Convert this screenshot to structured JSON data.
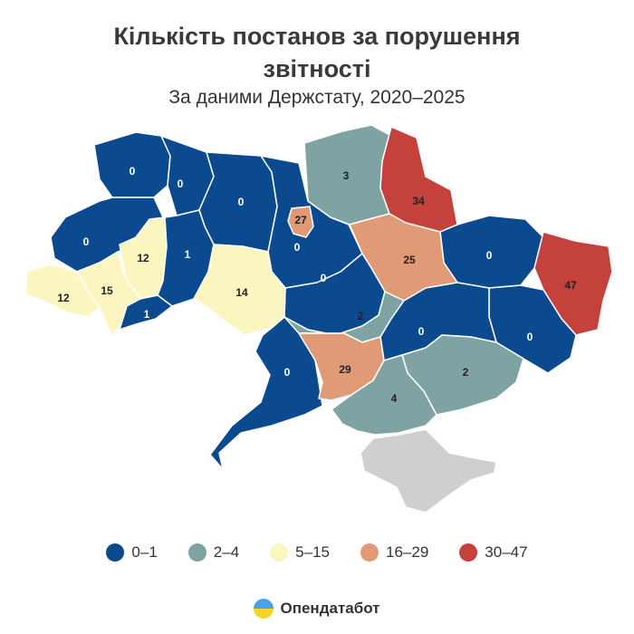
{
  "title_line1": "Кількість постанов за порушення",
  "title_line2": "звітності",
  "subtitle": "За даними Держстату, 2020–2025",
  "colors": {
    "c0": "#0b4a8f",
    "c1": "#7fa3a3",
    "c2": "#fbf6bf",
    "c3": "#e09b76",
    "c4": "#c5413c",
    "crimea": "#cfcfcf",
    "border": "#ffffff"
  },
  "regions": [
    {
      "id": "volyn",
      "value": "0",
      "cls": "c0"
    },
    {
      "id": "rivne",
      "value": "0",
      "cls": "c0"
    },
    {
      "id": "zhytomyr",
      "value": "0",
      "cls": "c0"
    },
    {
      "id": "kyiv-oblast",
      "value": "0",
      "cls": "c0"
    },
    {
      "id": "kyiv-city",
      "value": "27",
      "cls": "c3"
    },
    {
      "id": "chernihiv",
      "value": "3",
      "cls": "c1"
    },
    {
      "id": "sumy",
      "value": "34",
      "cls": "c4"
    },
    {
      "id": "kharkiv",
      "value": "0",
      "cls": "c0"
    },
    {
      "id": "luhansk",
      "value": "47",
      "cls": "c4"
    },
    {
      "id": "donetsk",
      "value": "0",
      "cls": "c0"
    },
    {
      "id": "poltava",
      "value": "25",
      "cls": "c3"
    },
    {
      "id": "cherkasy",
      "value": "0",
      "cls": "c0"
    },
    {
      "id": "lviv",
      "value": "0",
      "cls": "c0"
    },
    {
      "id": "ternopil",
      "value": "12",
      "cls": "c2"
    },
    {
      "id": "khmelnytskyi",
      "value": "1",
      "cls": "c0"
    },
    {
      "id": "vinnytsia",
      "value": "14",
      "cls": "c2"
    },
    {
      "id": "zakarpattia",
      "value": "12",
      "cls": "c2"
    },
    {
      "id": "ivano-frankivsk",
      "value": "15",
      "cls": "c2"
    },
    {
      "id": "chernivtsi",
      "value": "1",
      "cls": "c0"
    },
    {
      "id": "kirovohrad",
      "value": "2",
      "cls": "c1"
    },
    {
      "id": "dnipropetrovsk",
      "value": "0",
      "cls": "c0"
    },
    {
      "id": "zaporizhzhia",
      "value": "2",
      "cls": "c1"
    },
    {
      "id": "odesa",
      "value": "0",
      "cls": "c0"
    },
    {
      "id": "mykolaiv",
      "value": "29",
      "cls": "c3"
    },
    {
      "id": "kherson",
      "value": "4",
      "cls": "c1"
    },
    {
      "id": "crimea",
      "value": "",
      "cls": "crimea"
    }
  ],
  "legend": [
    {
      "label": "0–1",
      "color": "#0b4a8f"
    },
    {
      "label": "2–4",
      "color": "#7fa3a3"
    },
    {
      "label": "5–15",
      "color": "#fbf6bf"
    },
    {
      "label": "16–29",
      "color": "#e09b76"
    },
    {
      "label": "30–47",
      "color": "#c5413c"
    }
  ],
  "brand": "Опендатабот"
}
